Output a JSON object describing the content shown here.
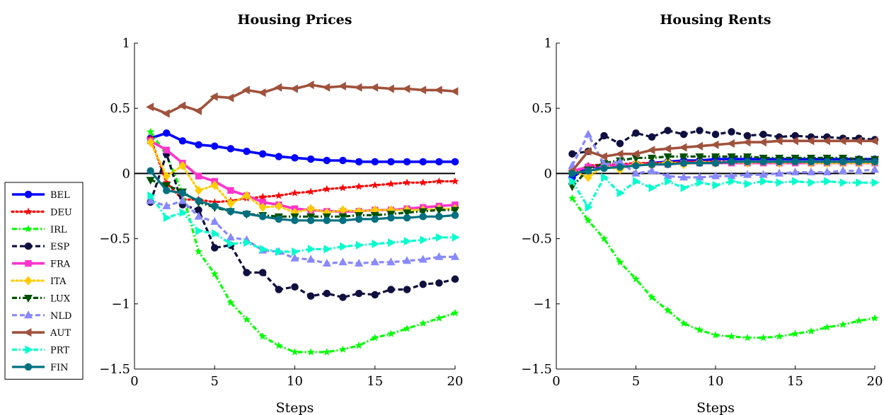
{
  "chart_data": [
    {
      "type": "line",
      "title": "Housing Prices",
      "xlabel": "Steps",
      "ylabel": "",
      "xlim": [
        0,
        20
      ],
      "ylim": [
        -1.5,
        1
      ],
      "xticks": [
        0,
        5,
        10,
        15,
        20
      ],
      "yticks": [
        -1.5,
        -1,
        -0.5,
        0,
        0.5,
        1
      ],
      "xtick_labels": [
        "0",
        "5",
        "10",
        "15",
        "20"
      ],
      "ytick_labels": [
        "−1.5",
        "−1",
        "−0.5",
        "0",
        "0.5",
        "1"
      ],
      "zero_line": true,
      "grid": false,
      "x": [
        1,
        2,
        3,
        4,
        5,
        6,
        7,
        8,
        9,
        10,
        11,
        12,
        13,
        14,
        15,
        16,
        17,
        18,
        19,
        20
      ],
      "series": [
        {
          "name": "BEL",
          "values": [
            0.27,
            0.31,
            0.25,
            0.22,
            0.21,
            0.19,
            0.17,
            0.15,
            0.13,
            0.12,
            0.11,
            0.1,
            0.1,
            0.09,
            0.09,
            0.09,
            0.09,
            0.09,
            0.09,
            0.09
          ]
        },
        {
          "name": "DEU",
          "values": [
            0.27,
            -0.07,
            -0.2,
            -0.2,
            -0.22,
            -0.21,
            -0.19,
            -0.18,
            -0.17,
            -0.15,
            -0.14,
            -0.12,
            -0.11,
            -0.1,
            -0.09,
            -0.08,
            -0.07,
            -0.07,
            -0.06,
            -0.06
          ]
        },
        {
          "name": "IRL",
          "values": [
            0.32,
            0.14,
            -0.15,
            -0.6,
            -0.77,
            -0.99,
            -1.12,
            -1.25,
            -1.32,
            -1.37,
            -1.37,
            -1.37,
            -1.35,
            -1.32,
            -1.26,
            -1.23,
            -1.19,
            -1.15,
            -1.11,
            -1.07
          ]
        },
        {
          "name": "ESP",
          "values": [
            -0.22,
            0.15,
            -0.24,
            -0.28,
            -0.57,
            -0.55,
            -0.76,
            -0.76,
            -0.89,
            -0.87,
            -0.94,
            -0.92,
            -0.95,
            -0.92,
            -0.93,
            -0.89,
            -0.89,
            -0.85,
            -0.84,
            -0.81
          ]
        },
        {
          "name": "FRA",
          "values": [
            0.25,
            0.18,
            0.08,
            -0.02,
            -0.06,
            -0.13,
            -0.17,
            -0.22,
            -0.24,
            -0.27,
            -0.28,
            -0.29,
            -0.29,
            -0.29,
            -0.28,
            -0.28,
            -0.27,
            -0.26,
            -0.25,
            -0.24
          ]
        },
        {
          "name": "ITA",
          "values": [
            0.24,
            -0.02,
            0.06,
            -0.13,
            -0.09,
            -0.23,
            -0.17,
            -0.26,
            -0.25,
            -0.3,
            -0.27,
            -0.3,
            -0.28,
            -0.29,
            -0.28,
            -0.28,
            -0.28,
            -0.28,
            -0.27,
            -0.27
          ]
        },
        {
          "name": "LUX",
          "values": [
            -0.05,
            -0.09,
            -0.14,
            -0.22,
            -0.26,
            -0.29,
            -0.31,
            -0.32,
            -0.33,
            -0.33,
            -0.33,
            -0.33,
            -0.33,
            -0.32,
            -0.32,
            -0.31,
            -0.3,
            -0.29,
            -0.28,
            -0.28
          ]
        },
        {
          "name": "NLD",
          "values": [
            -0.21,
            -0.25,
            -0.21,
            -0.33,
            -0.37,
            -0.49,
            -0.51,
            -0.59,
            -0.6,
            -0.65,
            -0.66,
            -0.69,
            -0.68,
            -0.69,
            -0.68,
            -0.68,
            -0.67,
            -0.66,
            -0.64,
            -0.64
          ]
        },
        {
          "name": "AUT",
          "values": [
            0.51,
            0.46,
            0.52,
            0.48,
            0.59,
            0.58,
            0.64,
            0.62,
            0.66,
            0.65,
            0.68,
            0.66,
            0.67,
            0.66,
            0.66,
            0.65,
            0.65,
            0.64,
            0.64,
            0.63
          ]
        },
        {
          "name": "PRT",
          "values": [
            -0.17,
            -0.34,
            -0.3,
            -0.44,
            -0.46,
            -0.54,
            -0.53,
            -0.58,
            -0.6,
            -0.6,
            -0.58,
            -0.58,
            -0.56,
            -0.55,
            -0.54,
            -0.53,
            -0.52,
            -0.51,
            -0.49,
            -0.49
          ]
        },
        {
          "name": "FIN",
          "values": [
            0.02,
            -0.13,
            -0.15,
            -0.21,
            -0.25,
            -0.29,
            -0.31,
            -0.33,
            -0.35,
            -0.36,
            -0.36,
            -0.36,
            -0.36,
            -0.35,
            -0.35,
            -0.34,
            -0.34,
            -0.33,
            -0.33,
            -0.32
          ]
        }
      ]
    },
    {
      "type": "line",
      "title": "Housing Rents",
      "xlabel": "Steps",
      "ylabel": "",
      "xlim": [
        0,
        20
      ],
      "ylim": [
        -1.5,
        1
      ],
      "xticks": [
        0,
        5,
        10,
        15,
        20
      ],
      "yticks": [
        -1.5,
        -1,
        -0.5,
        0,
        0.5,
        1
      ],
      "xtick_labels": [
        "0",
        "5",
        "10",
        "15",
        "20"
      ],
      "ytick_labels": [
        "−1.5",
        "−1",
        "−0.5",
        "0",
        "0.5",
        "1"
      ],
      "zero_line": true,
      "grid": false,
      "x": [
        1,
        2,
        3,
        4,
        5,
        6,
        7,
        8,
        9,
        10,
        11,
        12,
        13,
        14,
        15,
        16,
        17,
        18,
        19,
        20
      ],
      "series": [
        {
          "name": "BEL",
          "values": [
            -0.03,
            0.05,
            0.05,
            0.06,
            0.07,
            0.08,
            0.09,
            0.1,
            0.1,
            0.11,
            0.11,
            0.11,
            0.11,
            0.11,
            0.11,
            0.11,
            0.11,
            0.11,
            0.11,
            0.11
          ]
        },
        {
          "name": "DEU",
          "values": [
            0.0,
            0.06,
            0.07,
            0.07,
            0.08,
            0.08,
            0.08,
            0.09,
            0.09,
            0.09,
            0.09,
            0.09,
            0.09,
            0.09,
            0.09,
            0.09,
            0.09,
            0.09,
            0.09,
            0.09
          ]
        },
        {
          "name": "IRL",
          "values": [
            -0.19,
            -0.36,
            -0.5,
            -0.68,
            -0.81,
            -0.95,
            -1.05,
            -1.15,
            -1.2,
            -1.24,
            -1.25,
            -1.26,
            -1.26,
            -1.25,
            -1.23,
            -1.21,
            -1.18,
            -1.16,
            -1.13,
            -1.11
          ]
        },
        {
          "name": "ESP",
          "values": [
            0.15,
            0.17,
            0.29,
            0.23,
            0.31,
            0.28,
            0.33,
            0.3,
            0.33,
            0.3,
            0.32,
            0.29,
            0.3,
            0.28,
            0.29,
            0.28,
            0.28,
            0.27,
            0.27,
            0.26
          ]
        },
        {
          "name": "FRA",
          "values": [
            0.02,
            0.05,
            0.06,
            0.06,
            0.07,
            0.07,
            0.07,
            0.08,
            0.08,
            0.08,
            0.08,
            0.08,
            0.08,
            0.08,
            0.08,
            0.08,
            0.08,
            0.08,
            0.08,
            0.08
          ]
        },
        {
          "name": "ITA",
          "values": [
            0.02,
            -0.03,
            0.06,
            0.03,
            0.08,
            0.06,
            0.09,
            0.07,
            0.09,
            0.08,
            0.09,
            0.08,
            0.09,
            0.08,
            0.09,
            0.08,
            0.08,
            0.08,
            0.08,
            0.08
          ]
        },
        {
          "name": "LUX",
          "values": [
            -0.1,
            0.03,
            0.08,
            0.1,
            0.12,
            0.12,
            0.13,
            0.13,
            0.13,
            0.13,
            0.13,
            0.13,
            0.12,
            0.12,
            0.12,
            0.12,
            0.12,
            0.12,
            0.11,
            0.11
          ]
        },
        {
          "name": "NLD",
          "values": [
            0.06,
            0.3,
            0.07,
            0.09,
            0.0,
            0.02,
            -0.02,
            -0.03,
            -0.03,
            -0.02,
            -0.02,
            -0.01,
            -0.01,
            0.0,
            0.01,
            0.01,
            0.01,
            0.02,
            0.02,
            0.03
          ]
        },
        {
          "name": "AUT",
          "values": [
            0.02,
            0.17,
            0.13,
            0.15,
            0.15,
            0.18,
            0.19,
            0.2,
            0.21,
            0.22,
            0.23,
            0.24,
            0.24,
            0.25,
            0.25,
            0.25,
            0.25,
            0.25,
            0.25,
            0.25
          ]
        },
        {
          "name": "PRT",
          "values": [
            -0.06,
            -0.26,
            -0.03,
            -0.15,
            -0.06,
            -0.11,
            -0.06,
            -0.11,
            -0.07,
            -0.09,
            -0.06,
            -0.08,
            -0.06,
            -0.07,
            -0.06,
            -0.07,
            -0.06,
            -0.07,
            -0.07,
            -0.07
          ]
        },
        {
          "name": "FIN",
          "values": [
            0.0,
            0.02,
            0.04,
            0.05,
            0.06,
            0.07,
            0.07,
            0.08,
            0.08,
            0.08,
            0.09,
            0.09,
            0.09,
            0.09,
            0.09,
            0.09,
            0.09,
            0.09,
            0.09,
            0.09
          ]
        }
      ]
    }
  ],
  "legend": {
    "placement": "left",
    "entries": [
      {
        "name": "BEL",
        "color": "#0000ff",
        "marker": "circle",
        "dash": "solid"
      },
      {
        "name": "DEU",
        "color": "#ff0000",
        "marker": "star",
        "dash": "dotted"
      },
      {
        "name": "IRL",
        "color": "#00ff00",
        "marker": "star",
        "dash": "dashdot"
      },
      {
        "name": "ESP",
        "color": "#101040",
        "marker": "circle",
        "dash": "dashed"
      },
      {
        "name": "FRA",
        "color": "#ff33cc",
        "marker": "square",
        "dash": "solid"
      },
      {
        "name": "ITA",
        "color": "#ffcc00",
        "marker": "diamond",
        "dash": "dotted"
      },
      {
        "name": "LUX",
        "color": "#005000",
        "marker": "triangle-down",
        "dash": "dashdot"
      },
      {
        "name": "NLD",
        "color": "#8888ff",
        "marker": "triangle-up",
        "dash": "dashed"
      },
      {
        "name": "AUT",
        "color": "#a0523c",
        "marker": "triangle-left",
        "dash": "solid"
      },
      {
        "name": "PRT",
        "color": "#00ffcc",
        "marker": "triangle-right",
        "dash": "dashdot"
      },
      {
        "name": "FIN",
        "color": "#007080",
        "marker": "circle",
        "dash": "solid"
      }
    ]
  }
}
